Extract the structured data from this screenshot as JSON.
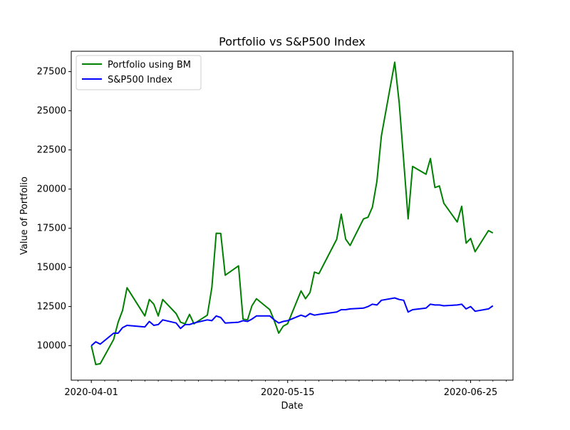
{
  "chart_data": {
    "type": "line",
    "title": "Portfolio vs S&P500 Index",
    "xlabel": "Date",
    "ylabel": "Value of Portfolio",
    "grid": false,
    "legend_position": "top-left",
    "x_tick_labels": [
      "2020-04-01",
      "2020-05-15",
      "2020-06-25"
    ],
    "y_ticks": [
      10000,
      12500,
      15000,
      17500,
      20000,
      22500,
      25000,
      27500
    ],
    "ylim": [
      7800,
      28800
    ],
    "x": [
      "2020-04-01",
      "2020-04-02",
      "2020-04-03",
      "2020-04-06",
      "2020-04-07",
      "2020-04-08",
      "2020-04-09",
      "2020-04-13",
      "2020-04-14",
      "2020-04-15",
      "2020-04-16",
      "2020-04-17",
      "2020-04-20",
      "2020-04-21",
      "2020-04-22",
      "2020-04-23",
      "2020-04-24",
      "2020-04-27",
      "2020-04-28",
      "2020-04-29",
      "2020-04-30",
      "2020-05-01",
      "2020-05-04",
      "2020-05-05",
      "2020-05-06",
      "2020-05-07",
      "2020-05-08",
      "2020-05-11",
      "2020-05-12",
      "2020-05-13",
      "2020-05-14",
      "2020-05-15",
      "2020-05-18",
      "2020-05-19",
      "2020-05-20",
      "2020-05-21",
      "2020-05-22",
      "2020-05-26",
      "2020-05-27",
      "2020-05-28",
      "2020-05-29",
      "2020-06-01",
      "2020-06-02",
      "2020-06-03",
      "2020-06-04",
      "2020-06-05",
      "2020-06-08",
      "2020-06-09",
      "2020-06-10",
      "2020-06-11",
      "2020-06-12",
      "2020-06-15",
      "2020-06-16",
      "2020-06-17",
      "2020-06-18",
      "2020-06-19",
      "2020-06-22",
      "2020-06-23",
      "2020-06-24",
      "2020-06-25",
      "2020-06-26",
      "2020-06-29",
      "2020-06-30"
    ],
    "series": [
      {
        "name": "Portfolio using BM",
        "color": "#008000",
        "values": [
          10000,
          8800,
          8850,
          10400,
          11500,
          12250,
          13700,
          11900,
          12950,
          12650,
          11900,
          12950,
          12050,
          11500,
          11400,
          12000,
          11400,
          11950,
          13700,
          17180,
          17170,
          14500,
          15100,
          11700,
          11650,
          12550,
          13000,
          12300,
          11600,
          10800,
          11250,
          11400,
          13500,
          13000,
          13400,
          14700,
          14600,
          16800,
          18400,
          16800,
          16400,
          18100,
          18200,
          18850,
          20500,
          23400,
          28100,
          25500,
          21800,
          18100,
          21450,
          20950,
          21950,
          20100,
          20200,
          19100,
          17900,
          18900,
          16550,
          16850,
          16000,
          17350,
          17200
        ]
      },
      {
        "name": "S&P500 Index",
        "color": "#0000ff",
        "values": [
          10000,
          10250,
          10100,
          10800,
          10800,
          11150,
          11300,
          11200,
          11550,
          11300,
          11350,
          11650,
          11450,
          11100,
          11350,
          11350,
          11450,
          11650,
          11600,
          11900,
          11800,
          11450,
          11500,
          11600,
          11550,
          11700,
          11900,
          11900,
          11650,
          11450,
          11550,
          11600,
          11950,
          11850,
          12050,
          11950,
          12000,
          12150,
          12300,
          12300,
          12350,
          12400,
          12500,
          12650,
          12600,
          12900,
          13050,
          12950,
          12900,
          12150,
          12300,
          12400,
          12650,
          12600,
          12600,
          12550,
          12600,
          12650,
          12350,
          12500,
          12200,
          12350,
          12550
        ]
      }
    ]
  }
}
